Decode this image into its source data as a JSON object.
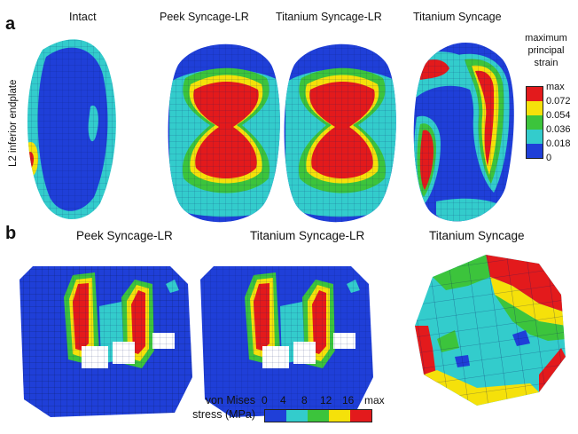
{
  "panel_a": {
    "letter": "a",
    "ylabel": "L2 inferior endplate",
    "titles": [
      "Intact",
      "Peek Syncage-LR",
      "Titanium Syncage-LR",
      "Titanium Syncage"
    ],
    "colorbar": {
      "title_lines": [
        "maximum",
        "principal",
        "strain"
      ],
      "labels": [
        "max",
        "0.072",
        "0.054",
        "0.036",
        "0.018",
        "0"
      ],
      "colors": [
        "#e31a1c",
        "#f5e10a",
        "#3cc43c",
        "#33cccc",
        "#1f3fd8"
      ]
    }
  },
  "panel_b": {
    "letter": "b",
    "titles": [
      "Peek Syncage-LR",
      "Titanium Syncage-LR",
      "Titanium Syncage"
    ],
    "colorbar": {
      "title_lines": [
        "von Mises",
        "stress (MPa)"
      ],
      "ticks": [
        "0",
        "4",
        "8",
        "12",
        "16",
        "max"
      ],
      "colors": [
        "#1f3fd8",
        "#33cccc",
        "#3cc43c",
        "#f5e10a",
        "#e31a1c"
      ]
    }
  },
  "palette": {
    "blue": "#1f3fd8",
    "cyan": "#33cccc",
    "green": "#3cc43c",
    "yellow": "#f5e10a",
    "red": "#e31a1c",
    "mesh": "#0a1a60"
  }
}
